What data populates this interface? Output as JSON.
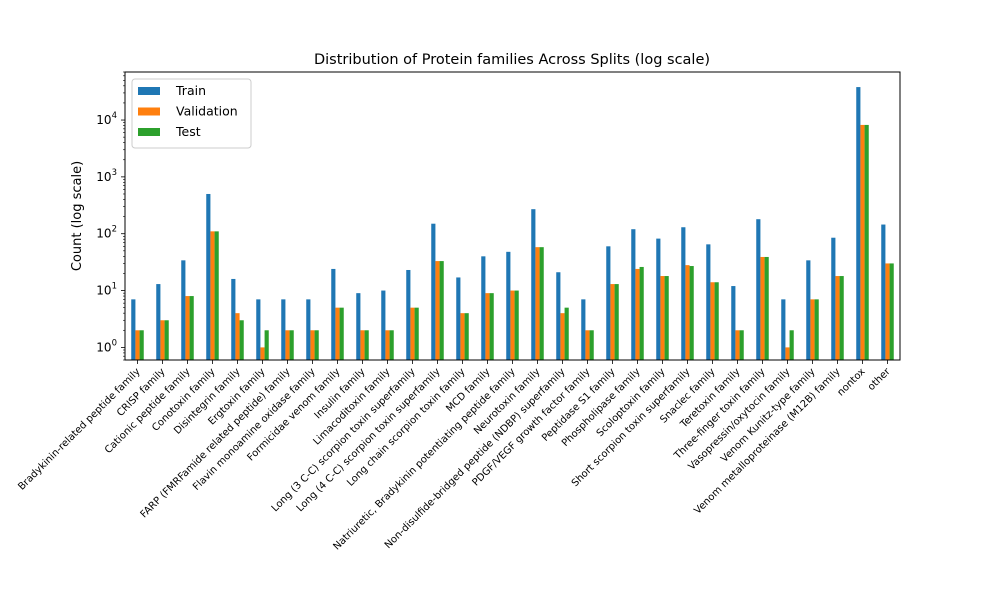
{
  "chart_data": {
    "type": "bar",
    "title": "Distribution of Protein families Across Splits (log scale)",
    "xlabel": "",
    "ylabel": "Count (log scale)",
    "yscale": "log",
    "ylim": [
      0.6,
      70000
    ],
    "yticks": [
      {
        "value": 1,
        "base": "10",
        "exp": "0"
      },
      {
        "value": 10,
        "base": "10",
        "exp": "1"
      },
      {
        "value": 100,
        "base": "10",
        "exp": "2"
      },
      {
        "value": 1000,
        "base": "10",
        "exp": "3"
      },
      {
        "value": 10000,
        "base": "10",
        "exp": "4"
      }
    ],
    "grid": false,
    "legend": "top-left",
    "categories": [
      "Bradykinin-related peptide family",
      "CRISP family",
      "Cationic peptide family",
      "Conotoxin family",
      "Disintegrin family",
      "Ergtoxin family",
      "FARP (FMRFamide related peptide) family",
      "Flavin monoamine oxidase family",
      "Formicidae venom family",
      "Insulin family",
      "Limacoditoxin family",
      "Long (3 C-C) scorpion toxin superfamily",
      "Long (4 C-C) scorpion toxin superfamily",
      "Long chain scorpion toxin family",
      "MCD family",
      "Natriuretic, Bradykinin potentiating peptide family",
      "Neurotoxin family",
      "Non-disulfide-bridged peptide (NDBP) superfamily",
      "PDGF/VEGF growth factor family",
      "Peptidase S1 family",
      "Phospholipase family",
      "Scoloptoxin family",
      "Short scorpion toxin superfamily",
      "Snaclec family",
      "Teretoxin family",
      "Three-finger toxin family",
      "Vasopressin/oxytocin family",
      "Venom Kunitz-type family",
      "Venom metalloproteinase (M12B) family",
      "nontox",
      "other"
    ],
    "series": [
      {
        "name": "Train",
        "color": "#1f77b4",
        "values": [
          7,
          13,
          34,
          500,
          16,
          7,
          7,
          7,
          24,
          9,
          10,
          23,
          150,
          17,
          40,
          48,
          270,
          21,
          7,
          60,
          120,
          82,
          130,
          65,
          12,
          180,
          7,
          34,
          85,
          38000,
          145
        ]
      },
      {
        "name": "Validation",
        "color": "#ff7f0e",
        "values": [
          2,
          3,
          8,
          110,
          4,
          1,
          2,
          2,
          5,
          2,
          2,
          5,
          33,
          4,
          9,
          10,
          58,
          4,
          2,
          13,
          24,
          18,
          28,
          14,
          2,
          39,
          1,
          7,
          18,
          8200,
          30
        ]
      },
      {
        "name": "Test",
        "color": "#2ca02c",
        "values": [
          2,
          3,
          8,
          110,
          3,
          2,
          2,
          2,
          5,
          2,
          2,
          5,
          33,
          4,
          9,
          10,
          58,
          5,
          2,
          13,
          26,
          18,
          27,
          14,
          2,
          39,
          2,
          7,
          18,
          8200,
          30
        ]
      }
    ]
  }
}
